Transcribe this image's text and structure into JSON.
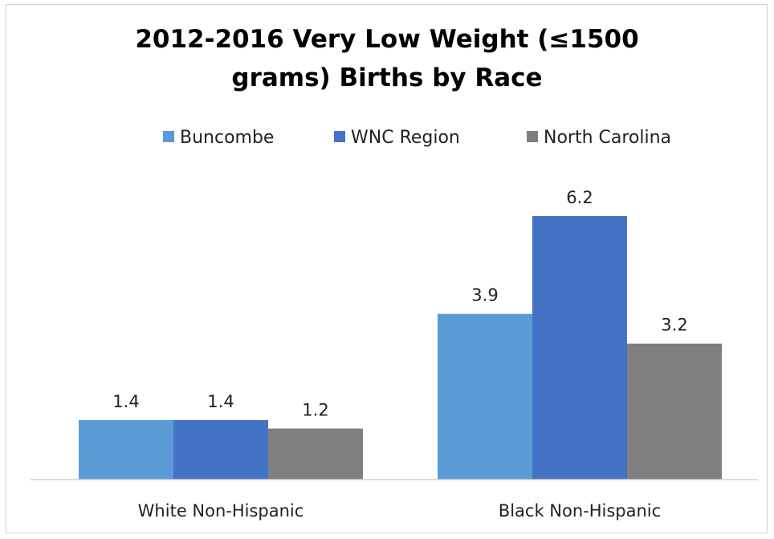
{
  "chart_data": {
    "type": "bar",
    "title_lines": [
      "2012-2016 Very Low Weight  (≤1500",
      "grams) Births by Race"
    ],
    "categories": [
      "White Non-Hispanic",
      "Black Non-Hispanic"
    ],
    "series": [
      {
        "name": "Buncombe",
        "values": [
          1.4,
          3.9
        ],
        "color": "#5b9bd5"
      },
      {
        "name": "WNC Region",
        "values": [
          1.4,
          6.2
        ],
        "color": "#4472c4"
      },
      {
        "name": "North Carolina",
        "values": [
          1.2,
          3.2
        ],
        "color": "#7f7f7f"
      }
    ],
    "ylim": [
      0,
      7
    ],
    "grid": false,
    "legend_position": "top",
    "data_labels": true
  }
}
